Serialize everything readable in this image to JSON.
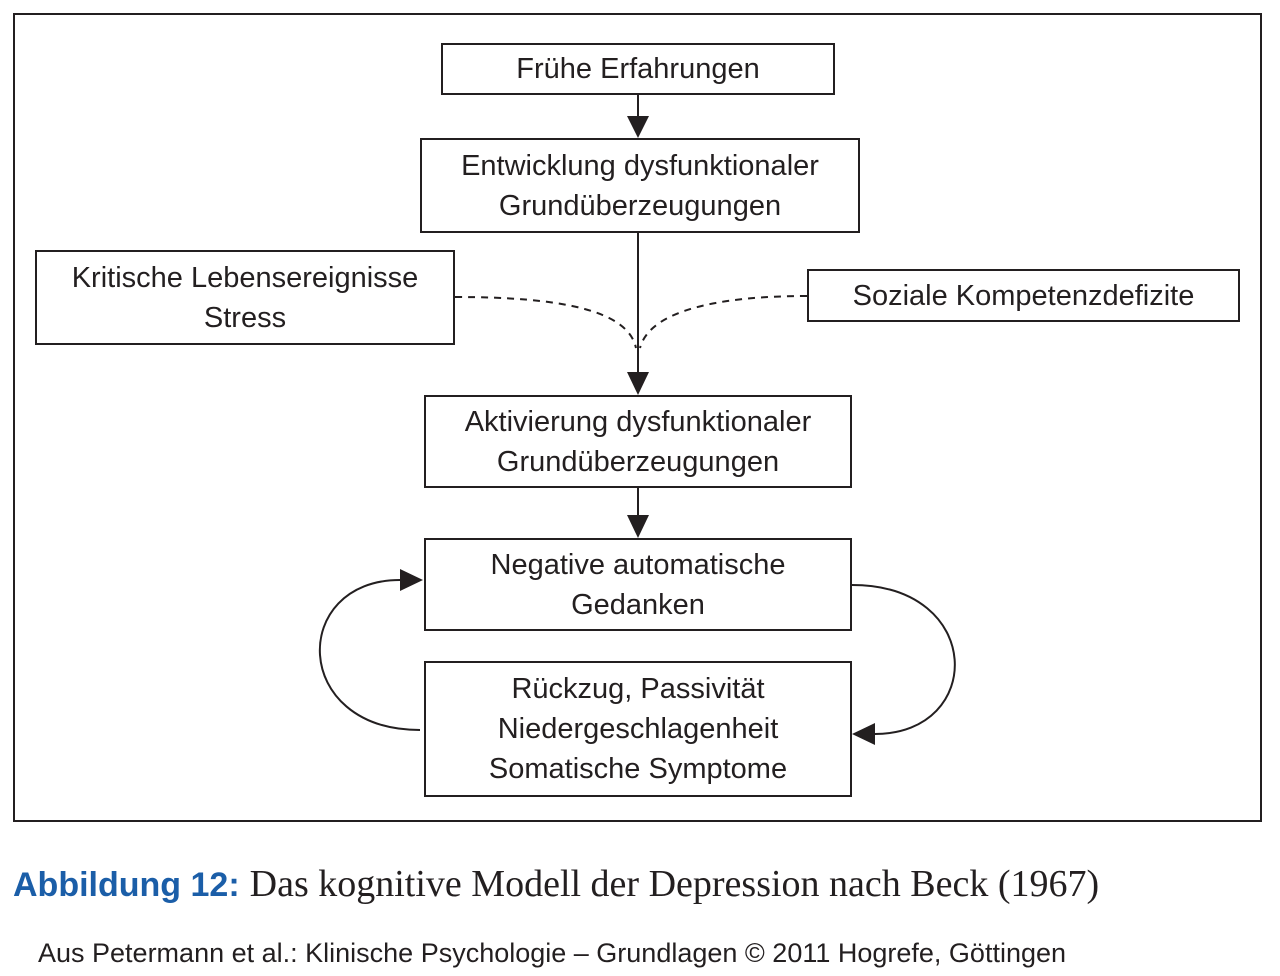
{
  "diagram": {
    "nodes": {
      "fruehe": {
        "lines": [
          "Frühe Erfahrungen"
        ]
      },
      "entwicklung": {
        "lines": [
          "Entwicklung dysfunktionaler",
          "Grundüberzeugungen"
        ]
      },
      "kritische": {
        "lines": [
          "Kritische Lebensereignisse",
          "Stress"
        ]
      },
      "sozial": {
        "lines": [
          "Soziale Kompetenzdefizite"
        ]
      },
      "aktivierung": {
        "lines": [
          "Aktivierung dysfunktionaler",
          "Grundüberzeugungen"
        ]
      },
      "negative": {
        "lines": [
          "Negative automatische",
          "Gedanken"
        ]
      },
      "rueckzug": {
        "lines": [
          "Rückzug, Passivität",
          "Niedergeschlagenheit",
          "Somatische Symptome"
        ]
      }
    },
    "edges": [
      {
        "from": "fruehe",
        "to": "entwicklung",
        "style": "solid"
      },
      {
        "from": "entwicklung",
        "to": "aktivierung",
        "style": "solid"
      },
      {
        "from": "kritische",
        "to": "aktivierung",
        "style": "dashed"
      },
      {
        "from": "sozial",
        "to": "aktivierung",
        "style": "dashed"
      },
      {
        "from": "aktivierung",
        "to": "negative",
        "style": "solid"
      },
      {
        "from": "negative",
        "to": "rueckzug",
        "style": "solid"
      },
      {
        "from": "rueckzug",
        "to": "negative",
        "style": "solid"
      }
    ]
  },
  "caption": {
    "label": "Abbildung 12:",
    "text": "Das kognitive Modell der Depression nach Beck (1967)",
    "label_color": "#1b5ea8"
  },
  "source": "Aus Petermann et al.: Klinische Psychologie – Grundlagen © 2011 Hogrefe, Göttingen"
}
